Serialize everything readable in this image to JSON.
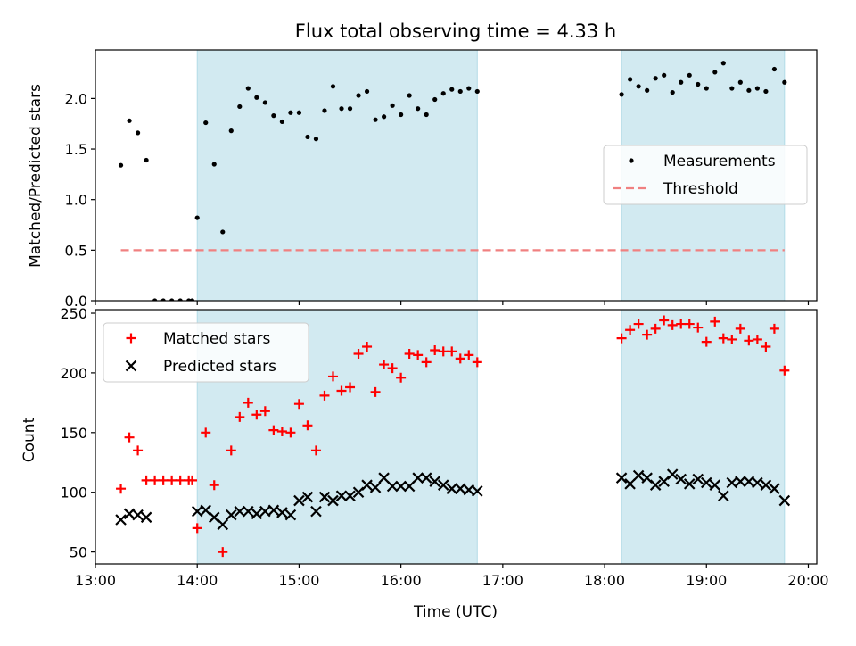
{
  "figure": {
    "title": "Flux total observing time = 4.33 h",
    "xlabel": "Time (UTC)",
    "x_ticks": [
      "13:00",
      "14:00",
      "15:00",
      "16:00",
      "17:00",
      "18:00",
      "19:00",
      "20:00"
    ]
  },
  "colors": {
    "shade": "#add8e6",
    "measurement": "#000000",
    "threshold": "#f08080",
    "matched": "#ff0000",
    "predicted": "#000000"
  },
  "chart_data": [
    {
      "type": "scatter",
      "panel": "top",
      "ylabel": "Matched/Predicted stars",
      "xlim": [
        "13:00",
        "20:05"
      ],
      "ylim": [
        0,
        2.48
      ],
      "y_ticks": [
        "0.0",
        "0.5",
        "1.0",
        "1.5",
        "2.0"
      ],
      "shaded_intervals": [
        [
          "14:00",
          "16:45"
        ],
        [
          "18:10",
          "19:46"
        ]
      ],
      "legend": {
        "placement": "center-right",
        "entries": [
          "Measurements",
          "Threshold"
        ]
      },
      "threshold": {
        "name": "Threshold",
        "y": 0.5,
        "x_range": [
          "13:15",
          "19:46"
        ],
        "style": "dashed"
      },
      "series": [
        {
          "name": "Measurements",
          "marker": "dot",
          "points": [
            [
              "13:15",
              1.34
            ],
            [
              "13:20",
              1.78
            ],
            [
              "13:25",
              1.66
            ],
            [
              "13:30",
              1.39
            ],
            [
              "13:35",
              0.0
            ],
            [
              "13:40",
              0.0
            ],
            [
              "13:45",
              0.0
            ],
            [
              "13:50",
              0.0
            ],
            [
              "13:55",
              0.0
            ],
            [
              "13:57",
              0.0
            ],
            [
              "14:00",
              0.82
            ],
            [
              "14:05",
              1.76
            ],
            [
              "14:10",
              1.35
            ],
            [
              "14:15",
              0.68
            ],
            [
              "14:20",
              1.68
            ],
            [
              "14:25",
              1.92
            ],
            [
              "14:30",
              2.1
            ],
            [
              "14:35",
              2.01
            ],
            [
              "14:40",
              1.96
            ],
            [
              "14:45",
              1.83
            ],
            [
              "14:50",
              1.77
            ],
            [
              "14:55",
              1.86
            ],
            [
              "15:00",
              1.86
            ],
            [
              "15:05",
              1.62
            ],
            [
              "15:10",
              1.6
            ],
            [
              "15:15",
              1.88
            ],
            [
              "15:20",
              2.12
            ],
            [
              "15:25",
              1.9
            ],
            [
              "15:30",
              1.9
            ],
            [
              "15:35",
              2.03
            ],
            [
              "15:40",
              2.07
            ],
            [
              "15:45",
              1.79
            ],
            [
              "15:50",
              1.82
            ],
            [
              "15:55",
              1.93
            ],
            [
              "16:00",
              1.84
            ],
            [
              "16:05",
              2.03
            ],
            [
              "16:10",
              1.9
            ],
            [
              "16:15",
              1.84
            ],
            [
              "16:20",
              1.99
            ],
            [
              "16:25",
              2.05
            ],
            [
              "16:30",
              2.09
            ],
            [
              "16:35",
              2.07
            ],
            [
              "16:40",
              2.1
            ],
            [
              "16:45",
              2.07
            ],
            [
              "18:10",
              2.04
            ],
            [
              "18:15",
              2.19
            ],
            [
              "18:20",
              2.12
            ],
            [
              "18:25",
              2.08
            ],
            [
              "18:30",
              2.2
            ],
            [
              "18:35",
              2.23
            ],
            [
              "18:40",
              2.06
            ],
            [
              "18:45",
              2.16
            ],
            [
              "18:50",
              2.23
            ],
            [
              "18:55",
              2.14
            ],
            [
              "19:00",
              2.1
            ],
            [
              "19:05",
              2.26
            ],
            [
              "19:10",
              2.35
            ],
            [
              "19:15",
              2.1
            ],
            [
              "19:20",
              2.16
            ],
            [
              "19:25",
              2.08
            ],
            [
              "19:30",
              2.1
            ],
            [
              "19:35",
              2.07
            ],
            [
              "19:40",
              2.29
            ],
            [
              "19:46",
              2.16
            ]
          ]
        }
      ]
    },
    {
      "type": "scatter",
      "panel": "bottom",
      "ylabel": "Count",
      "xlim": [
        "13:00",
        "20:05"
      ],
      "ylim": [
        40,
        253
      ],
      "y_ticks": [
        "50",
        "100",
        "150",
        "200",
        "250"
      ],
      "shaded_intervals": [
        [
          "14:00",
          "16:45"
        ],
        [
          "18:10",
          "19:46"
        ]
      ],
      "legend": {
        "placement": "upper-left",
        "entries": [
          "Matched stars",
          "Predicted stars"
        ]
      },
      "series": [
        {
          "name": "Matched stars",
          "marker": "plus",
          "points": [
            [
              "13:15",
              103
            ],
            [
              "13:20",
              146
            ],
            [
              "13:25",
              135
            ],
            [
              "13:30",
              110
            ],
            [
              "13:35",
              110
            ],
            [
              "13:40",
              110
            ],
            [
              "13:45",
              110
            ],
            [
              "13:50",
              110
            ],
            [
              "13:55",
              110
            ],
            [
              "13:57",
              110
            ],
            [
              "14:00",
              70
            ],
            [
              "14:05",
              150
            ],
            [
              "14:10",
              106
            ],
            [
              "14:15",
              50
            ],
            [
              "14:20",
              135
            ],
            [
              "14:25",
              163
            ],
            [
              "14:30",
              175
            ],
            [
              "14:35",
              165
            ],
            [
              "14:40",
              168
            ],
            [
              "14:45",
              152
            ],
            [
              "14:50",
              151
            ],
            [
              "14:55",
              150
            ],
            [
              "15:00",
              174
            ],
            [
              "15:05",
              156
            ],
            [
              "15:10",
              135
            ],
            [
              "15:15",
              181
            ],
            [
              "15:20",
              197
            ],
            [
              "15:25",
              185
            ],
            [
              "15:30",
              188
            ],
            [
              "15:35",
              216
            ],
            [
              "15:40",
              222
            ],
            [
              "15:45",
              184
            ],
            [
              "15:50",
              207
            ],
            [
              "15:55",
              204
            ],
            [
              "16:00",
              196
            ],
            [
              "16:05",
              216
            ],
            [
              "16:10",
              215
            ],
            [
              "16:15",
              209
            ],
            [
              "16:20",
              219
            ],
            [
              "16:25",
              218
            ],
            [
              "16:30",
              218
            ],
            [
              "16:35",
              212
            ],
            [
              "16:40",
              215
            ],
            [
              "16:45",
              209
            ],
            [
              "18:10",
              229
            ],
            [
              "18:15",
              236
            ],
            [
              "18:20",
              241
            ],
            [
              "18:25",
              232
            ],
            [
              "18:30",
              237
            ],
            [
              "18:35",
              244
            ],
            [
              "18:40",
              240
            ],
            [
              "18:45",
              241
            ],
            [
              "18:50",
              241
            ],
            [
              "18:55",
              238
            ],
            [
              "19:00",
              226
            ],
            [
              "19:05",
              243
            ],
            [
              "19:10",
              229
            ],
            [
              "19:15",
              228
            ],
            [
              "19:20",
              237
            ],
            [
              "19:25",
              227
            ],
            [
              "19:30",
              228
            ],
            [
              "19:35",
              222
            ],
            [
              "19:40",
              237
            ],
            [
              "19:46",
              202
            ]
          ]
        },
        {
          "name": "Predicted stars",
          "marker": "x",
          "points": [
            [
              "13:15",
              77
            ],
            [
              "13:20",
              82
            ],
            [
              "13:25",
              81
            ],
            [
              "13:30",
              79
            ],
            [
              "14:00",
              84
            ],
            [
              "14:05",
              85
            ],
            [
              "14:10",
              79
            ],
            [
              "14:15",
              73
            ],
            [
              "14:20",
              81
            ],
            [
              "14:25",
              84
            ],
            [
              "14:30",
              84
            ],
            [
              "14:35",
              82
            ],
            [
              "14:40",
              84
            ],
            [
              "14:45",
              85
            ],
            [
              "14:50",
              83
            ],
            [
              "14:55",
              81
            ],
            [
              "15:00",
              93
            ],
            [
              "15:05",
              96
            ],
            [
              "15:10",
              84
            ],
            [
              "15:15",
              96
            ],
            [
              "15:20",
              93
            ],
            [
              "15:25",
              97
            ],
            [
              "15:30",
              97
            ],
            [
              "15:35",
              100
            ],
            [
              "15:40",
              106
            ],
            [
              "15:45",
              104
            ],
            [
              "15:50",
              112
            ],
            [
              "15:55",
              105
            ],
            [
              "16:00",
              105
            ],
            [
              "16:05",
              105
            ],
            [
              "16:10",
              112
            ],
            [
              "16:15",
              112
            ],
            [
              "16:20",
              109
            ],
            [
              "16:25",
              106
            ],
            [
              "16:30",
              103
            ],
            [
              "16:35",
              103
            ],
            [
              "16:40",
              102
            ],
            [
              "16:45",
              101
            ],
            [
              "18:10",
              112
            ],
            [
              "18:15",
              107
            ],
            [
              "18:20",
              114
            ],
            [
              "18:25",
              112
            ],
            [
              "18:30",
              106
            ],
            [
              "18:35",
              109
            ],
            [
              "18:40",
              115
            ],
            [
              "18:45",
              111
            ],
            [
              "18:50",
              107
            ],
            [
              "18:55",
              111
            ],
            [
              "19:00",
              108
            ],
            [
              "19:05",
              106
            ],
            [
              "19:10",
              97
            ],
            [
              "19:15",
              108
            ],
            [
              "19:20",
              109
            ],
            [
              "19:25",
              109
            ],
            [
              "19:30",
              108
            ],
            [
              "19:35",
              106
            ],
            [
              "19:40",
              103
            ],
            [
              "19:46",
              93
            ]
          ]
        }
      ]
    }
  ]
}
